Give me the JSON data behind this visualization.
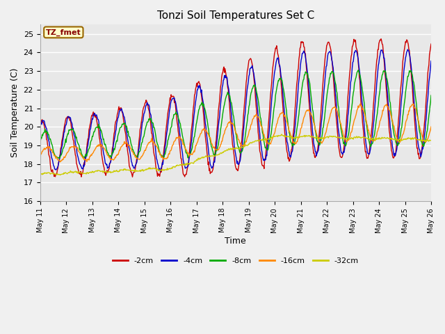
{
  "title": "Tonzi Soil Temperatures Set C",
  "xlabel": "Time",
  "ylabel": "Soil Temperature (C)",
  "ylim": [
    16.0,
    25.5
  ],
  "yticks": [
    16.0,
    17.0,
    18.0,
    19.0,
    20.0,
    21.0,
    22.0,
    23.0,
    24.0,
    25.0
  ],
  "background_color": "#f0f0f0",
  "plot_bg_color": "#e8e8e8",
  "annotation_text": "TZ_fmet",
  "annotation_bg": "#ffffcc",
  "annotation_border": "#996600",
  "series_colors": {
    "-2cm": "#cc0000",
    "-4cm": "#0000cc",
    "-8cm": "#00aa00",
    "-16cm": "#ff8800",
    "-32cm": "#cccc00"
  },
  "legend_colors": [
    "#cc0000",
    "#0000cc",
    "#00aa00",
    "#ff8800",
    "#cccc00"
  ],
  "legend_labels": [
    "-2cm",
    "-4cm",
    "-8cm",
    "-16cm",
    "-32cm"
  ],
  "xtick_days": [
    11,
    12,
    13,
    14,
    15,
    16,
    17,
    18,
    19,
    20,
    21,
    22,
    23,
    24,
    25,
    26
  ],
  "xtick_labels": [
    "May 11",
    "May 12",
    "May 13",
    "May 14",
    "May 15",
    "May 16",
    "May 17",
    "May 18",
    "May 19",
    "May 20",
    "May 21",
    "May 22",
    "May 23",
    "May 24",
    "May 25",
    "May 26"
  ]
}
